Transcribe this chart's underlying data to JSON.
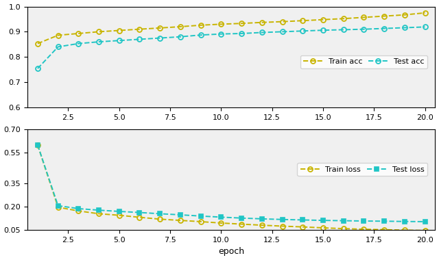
{
  "epochs": [
    1,
    2,
    3,
    4,
    5,
    6,
    7,
    8,
    9,
    10,
    11,
    12,
    13,
    14,
    15,
    16,
    17,
    18,
    19,
    20
  ],
  "train_acc": [
    0.853,
    0.886,
    0.893,
    0.9,
    0.905,
    0.91,
    0.915,
    0.92,
    0.926,
    0.93,
    0.933,
    0.937,
    0.94,
    0.944,
    0.948,
    0.952,
    0.957,
    0.962,
    0.967,
    0.975
  ],
  "test_acc": [
    0.754,
    0.84,
    0.853,
    0.86,
    0.865,
    0.87,
    0.875,
    0.88,
    0.887,
    0.891,
    0.893,
    0.897,
    0.9,
    0.903,
    0.906,
    0.908,
    0.91,
    0.913,
    0.916,
    0.919
  ],
  "train_loss": [
    0.598,
    0.197,
    0.173,
    0.155,
    0.145,
    0.132,
    0.12,
    0.112,
    0.104,
    0.095,
    0.088,
    0.081,
    0.075,
    0.07,
    0.064,
    0.059,
    0.055,
    0.052,
    0.049,
    0.047
  ],
  "test_loss": [
    0.598,
    0.207,
    0.188,
    0.178,
    0.17,
    0.163,
    0.155,
    0.148,
    0.14,
    0.133,
    0.127,
    0.122,
    0.118,
    0.115,
    0.112,
    0.11,
    0.108,
    0.107,
    0.105,
    0.104
  ],
  "train_color": "#c8b400",
  "test_color": "#20c5c5",
  "acc_ylim": [
    0.6,
    1.0
  ],
  "loss_ylim": [
    0.05,
    0.7
  ],
  "acc_yticks": [
    0.6,
    0.7,
    0.8,
    0.9,
    1.0
  ],
  "loss_yticks": [
    0.05,
    0.2,
    0.35,
    0.55,
    0.7
  ],
  "xticks": [
    2.5,
    5.0,
    7.5,
    10.0,
    12.5,
    15.0,
    17.5,
    20.0
  ],
  "xlabel": "epoch",
  "bg_color": "#f0f0f0"
}
